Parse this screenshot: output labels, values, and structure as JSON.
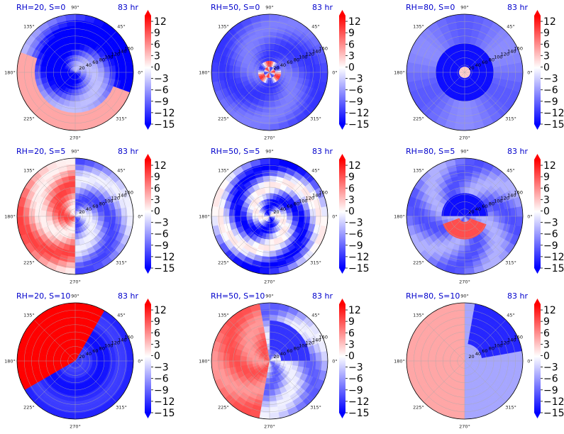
{
  "chart_data": {
    "type": "heatmap",
    "description_projection": "polar",
    "colormap": "bwr",
    "colorbar": {
      "ticks": [
        "12",
        "9",
        "6",
        "3",
        "0",
        "−3",
        "−6",
        "−9",
        "−12",
        "−15"
      ],
      "range": [
        -15,
        13.5
      ],
      "extend": "both"
    },
    "angle_labels": [
      "90°",
      "45°",
      "0°",
      "315°",
      "270°",
      "225°",
      "180°",
      "135°"
    ],
    "radius_labels": [
      "20",
      "40",
      "60",
      "80",
      "100",
      "120",
      "140",
      "160"
    ],
    "panels": [
      {
        "title": "RH=20, S=0",
        "time": "83 hr",
        "pattern": "swirl_blue",
        "red_level": 0.35
      },
      {
        "title": "RH=50, S=0",
        "time": "83 hr",
        "pattern": "center_swirl",
        "red_level": 0.2
      },
      {
        "title": "RH=80, S=0",
        "time": "83 hr",
        "pattern": "deep_blue_core",
        "red_level": 0.1
      },
      {
        "title": "RH=20, S=5",
        "time": "83 hr",
        "pattern": "mixed_red_left",
        "red_level": 0.55
      },
      {
        "title": "RH=50, S=5",
        "time": "83 hr",
        "pattern": "spiral_bands",
        "red_level": 0.35
      },
      {
        "title": "RH=80, S=5",
        "time": "83 hr",
        "pattern": "red_band_core",
        "red_level": 0.3
      },
      {
        "title": "RH=20, S=10",
        "time": "83 hr",
        "pattern": "half_split",
        "red_level": 0.9
      },
      {
        "title": "RH=50, S=10",
        "time": "83 hr",
        "pattern": "red_left_blue_right",
        "red_level": 0.6
      },
      {
        "title": "RH=80, S=10",
        "time": "83 hr",
        "pattern": "pink_left_blue_ne",
        "red_level": 0.45
      }
    ]
  }
}
